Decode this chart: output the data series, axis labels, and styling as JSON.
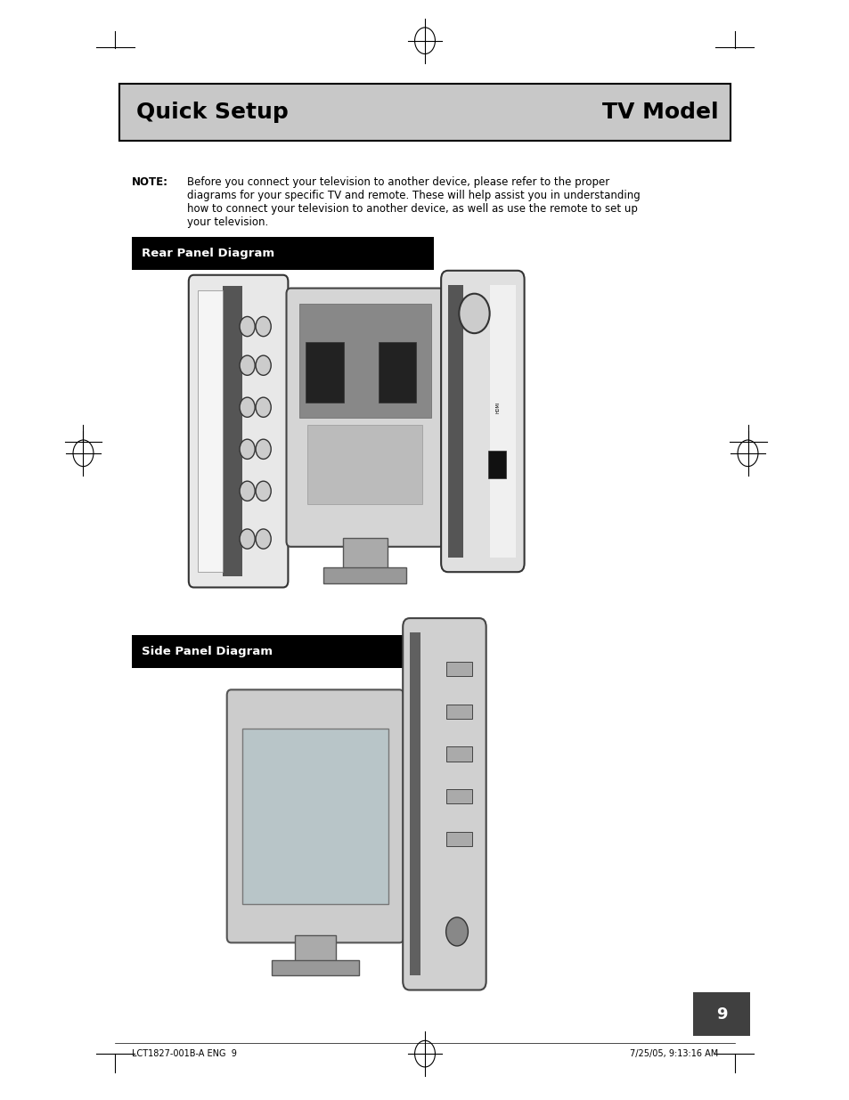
{
  "page_bg": "#ffffff",
  "title_text_left": "Quick Setup",
  "title_text_right": "TV Model",
  "title_bg": "#c8c8c8",
  "title_border": "#000000",
  "title_fontsize": 18,
  "note_bold": "NOTE:",
  "section1_label": "Rear Panel Diagram",
  "section1_label_bg": "#000000",
  "section1_label_color": "#ffffff",
  "section2_label": "Side Panel Diagram",
  "section2_label_bg": "#000000",
  "section2_label_color": "#ffffff",
  "footer_left": "LCT1827-001B-A ENG  9",
  "footer_right": "7/25/05, 9:13:16 AM",
  "page_number": "9",
  "page_number_bg": "#404040",
  "page_number_color": "#ffffff"
}
